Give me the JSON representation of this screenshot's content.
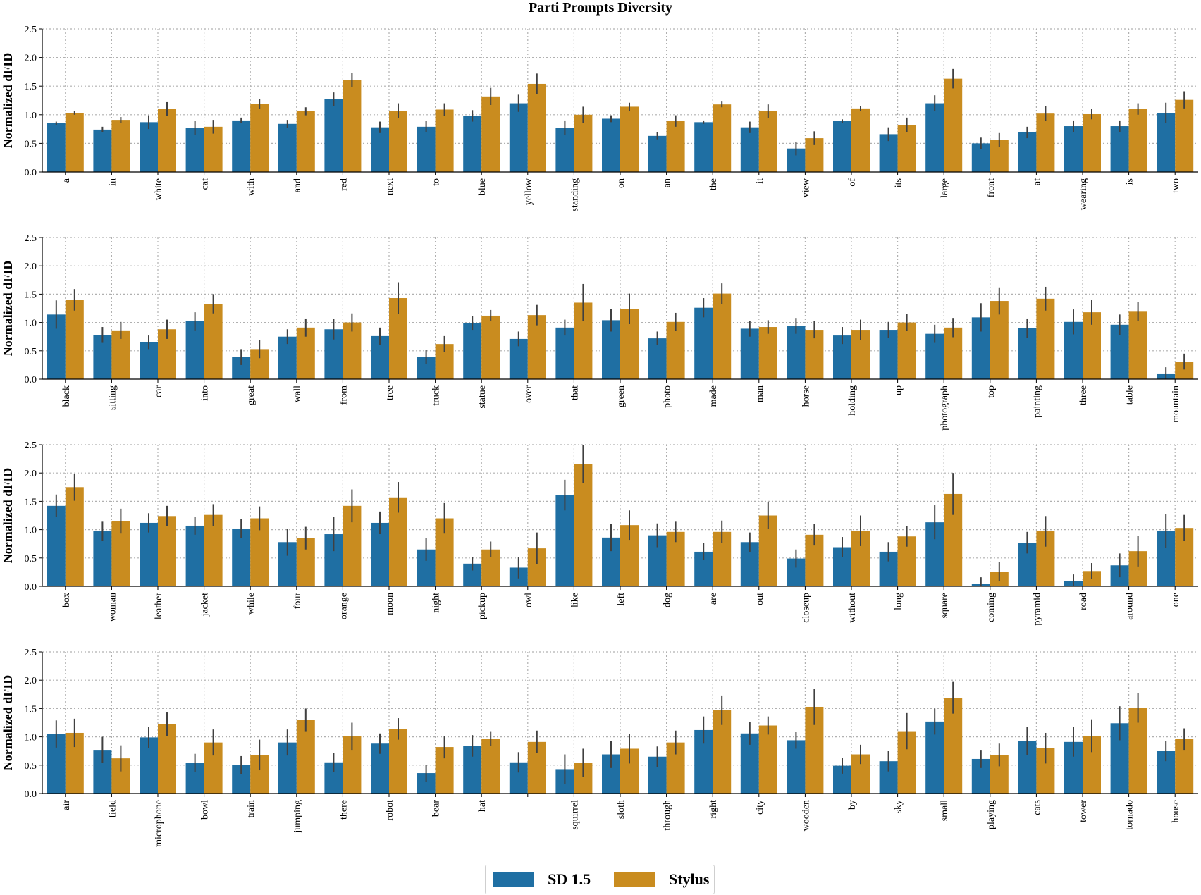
{
  "title": "Parti Prompts Diversity",
  "legend": {
    "sd": {
      "label": "SD 1.5",
      "color": "#1f6fa3"
    },
    "stylus": {
      "label": "Stylus",
      "color": "#c98c1f"
    }
  },
  "chart_data": [
    {
      "type": "bar",
      "ylabel": "Normalized dFID",
      "ylim": [
        0,
        2.5
      ],
      "yticks": [
        "0.0",
        "0.5",
        "1.0",
        "1.5",
        "2.0",
        "2.5"
      ],
      "categories": [
        "a",
        "in",
        "white",
        "cat",
        "with",
        "and",
        "red",
        "next",
        "to",
        "blue",
        "yellow",
        "standing",
        "on",
        "an",
        "the",
        "it",
        "view",
        "of",
        "its",
        "large",
        "front",
        "at",
        "wearing",
        "is",
        "two"
      ],
      "series": [
        {
          "name": "SD 1.5",
          "values": [
            0.85,
            0.74,
            0.87,
            0.77,
            0.9,
            0.84,
            1.27,
            0.78,
            0.79,
            0.98,
            1.2,
            0.77,
            0.93,
            0.63,
            0.87,
            0.78,
            0.41,
            0.89,
            0.66,
            1.2,
            0.5,
            0.69,
            0.8,
            0.8,
            1.03
          ],
          "errors": [
            0.03,
            0.05,
            0.12,
            0.12,
            0.05,
            0.07,
            0.12,
            0.1,
            0.1,
            0.1,
            0.15,
            0.13,
            0.06,
            0.06,
            0.03,
            0.1,
            0.12,
            0.03,
            0.12,
            0.14,
            0.1,
            0.1,
            0.1,
            0.1,
            0.18
          ]
        },
        {
          "name": "Stylus",
          "values": [
            1.03,
            0.91,
            1.1,
            0.79,
            1.19,
            1.06,
            1.61,
            1.07,
            1.09,
            1.32,
            1.54,
            1.0,
            1.14,
            0.89,
            1.18,
            1.06,
            0.59,
            1.11,
            0.82,
            1.63,
            0.56,
            1.02,
            1.01,
            1.1,
            1.26
          ],
          "errors": [
            0.03,
            0.05,
            0.12,
            0.12,
            0.09,
            0.07,
            0.12,
            0.13,
            0.11,
            0.15,
            0.18,
            0.14,
            0.07,
            0.1,
            0.05,
            0.12,
            0.12,
            0.04,
            0.13,
            0.17,
            0.12,
            0.13,
            0.09,
            0.1,
            0.15
          ]
        }
      ]
    },
    {
      "type": "bar",
      "ylabel": "Normalized dFID",
      "ylim": [
        0,
        2.5
      ],
      "yticks": [
        "0.0",
        "0.5",
        "1.0",
        "1.5",
        "2.0",
        "2.5"
      ],
      "categories": [
        "black",
        "sitting",
        "car",
        "into",
        "great",
        "wall",
        "from",
        "tree",
        "truck",
        "statue",
        "over",
        "that",
        "green",
        "photo",
        "made",
        "man",
        "horse",
        "holding",
        "up",
        "photograph",
        "top",
        "painting",
        "three",
        "table",
        "mountain"
      ],
      "series": [
        {
          "name": "SD 1.5",
          "values": [
            1.14,
            0.78,
            0.65,
            1.02,
            0.39,
            0.75,
            0.88,
            0.76,
            0.39,
            0.99,
            0.71,
            0.91,
            1.04,
            0.72,
            1.26,
            0.89,
            0.94,
            0.77,
            0.87,
            0.8,
            1.09,
            0.9,
            1.01,
            0.96,
            0.1
          ],
          "errors": [
            0.25,
            0.14,
            0.12,
            0.16,
            0.14,
            0.13,
            0.18,
            0.15,
            0.12,
            0.12,
            0.13,
            0.14,
            0.2,
            0.12,
            0.17,
            0.14,
            0.14,
            0.15,
            0.14,
            0.16,
            0.25,
            0.17,
            0.22,
            0.18,
            0.11
          ]
        },
        {
          "name": "Stylus",
          "values": [
            1.4,
            0.86,
            0.88,
            1.33,
            0.53,
            0.91,
            1.0,
            1.43,
            0.62,
            1.12,
            1.13,
            1.35,
            1.24,
            1.01,
            1.51,
            0.92,
            0.87,
            0.87,
            1.0,
            0.91,
            1.38,
            1.42,
            1.18,
            1.19,
            0.31
          ],
          "errors": [
            0.19,
            0.15,
            0.17,
            0.17,
            0.16,
            0.16,
            0.16,
            0.28,
            0.14,
            0.1,
            0.18,
            0.33,
            0.27,
            0.16,
            0.18,
            0.12,
            0.15,
            0.18,
            0.15,
            0.17,
            0.24,
            0.21,
            0.22,
            0.17,
            0.14
          ]
        }
      ]
    },
    {
      "type": "bar",
      "ylabel": "Normalized dFID",
      "ylim": [
        0,
        2.5
      ],
      "yticks": [
        "0.0",
        "0.5",
        "1.0",
        "1.5",
        "2.0",
        "2.5"
      ],
      "categories": [
        "box",
        "woman",
        "leather",
        "jacket",
        "while",
        "four",
        "orange",
        "moon",
        "night",
        "pickup",
        "owl",
        "like",
        "left",
        "dog",
        "are",
        "out",
        "closeup",
        "without",
        "long",
        "square",
        "coming",
        "pyramid",
        "road",
        "around",
        "one"
      ],
      "series": [
        {
          "name": "SD 1.5",
          "values": [
            1.42,
            0.97,
            1.12,
            1.07,
            1.02,
            0.78,
            0.92,
            1.12,
            0.65,
            0.4,
            0.33,
            1.61,
            0.86,
            0.9,
            0.61,
            0.78,
            0.49,
            0.69,
            0.61,
            1.13,
            0.04,
            0.77,
            0.09,
            0.37,
            0.98
          ],
          "errors": [
            0.2,
            0.17,
            0.17,
            0.16,
            0.17,
            0.24,
            0.3,
            0.2,
            0.2,
            0.12,
            0.19,
            0.27,
            0.24,
            0.21,
            0.15,
            0.17,
            0.16,
            0.18,
            0.17,
            0.3,
            0.12,
            0.19,
            0.12,
            0.21,
            0.3
          ]
        },
        {
          "name": "Stylus",
          "values": [
            1.75,
            1.15,
            1.24,
            1.26,
            1.2,
            0.85,
            1.42,
            1.57,
            1.2,
            0.65,
            0.67,
            2.16,
            1.08,
            0.96,
            0.96,
            1.25,
            0.91,
            0.98,
            0.88,
            1.63,
            0.26,
            0.97,
            0.27,
            0.62,
            1.03
          ],
          "errors": [
            0.24,
            0.22,
            0.18,
            0.19,
            0.21,
            0.2,
            0.29,
            0.27,
            0.27,
            0.14,
            0.28,
            0.34,
            0.26,
            0.18,
            0.2,
            0.24,
            0.19,
            0.27,
            0.18,
            0.37,
            0.17,
            0.27,
            0.14,
            0.27,
            0.23
          ]
        }
      ]
    },
    {
      "type": "bar",
      "ylabel": "Normalized dFID",
      "ylim": [
        0,
        2.5
      ],
      "yticks": [
        "0.0",
        "0.5",
        "1.0",
        "1.5",
        "2.0",
        "2.5"
      ],
      "categories": [
        "air",
        "field",
        "microphone",
        "bowl",
        "train",
        "jumping",
        "there",
        "robot",
        "bear",
        "hat",
        "",
        "squirrel",
        "sloth",
        "through",
        "right",
        "city",
        "wooden",
        "by",
        "sky",
        "small",
        "playing",
        "cats",
        "tower",
        "tornado",
        "house"
      ],
      "series": [
        {
          "name": "SD 1.5",
          "values": [
            1.05,
            0.77,
            0.99,
            0.54,
            0.5,
            0.9,
            0.55,
            0.88,
            0.36,
            0.84,
            0.55,
            0.43,
            0.69,
            0.65,
            1.12,
            1.06,
            0.94,
            0.49,
            0.57,
            1.27,
            0.61,
            0.93,
            0.91,
            1.24,
            0.75
          ],
          "errors": [
            0.24,
            0.23,
            0.19,
            0.16,
            0.16,
            0.23,
            0.17,
            0.18,
            0.15,
            0.19,
            0.18,
            0.26,
            0.24,
            0.18,
            0.24,
            0.2,
            0.15,
            0.14,
            0.18,
            0.23,
            0.16,
            0.25,
            0.26,
            0.3,
            0.18
          ]
        },
        {
          "name": "Stylus",
          "values": [
            1.07,
            0.62,
            1.22,
            0.9,
            0.68,
            1.3,
            1.01,
            1.14,
            0.82,
            0.97,
            0.91,
            0.54,
            0.79,
            0.9,
            1.47,
            1.2,
            1.53,
            0.69,
            1.1,
            1.69,
            0.68,
            0.8,
            1.02,
            1.51,
            0.96
          ],
          "errors": [
            0.25,
            0.23,
            0.21,
            0.23,
            0.27,
            0.2,
            0.24,
            0.19,
            0.2,
            0.13,
            0.2,
            0.25,
            0.26,
            0.21,
            0.26,
            0.16,
            0.32,
            0.17,
            0.32,
            0.28,
            0.2,
            0.27,
            0.29,
            0.26,
            0.19
          ]
        }
      ]
    }
  ]
}
